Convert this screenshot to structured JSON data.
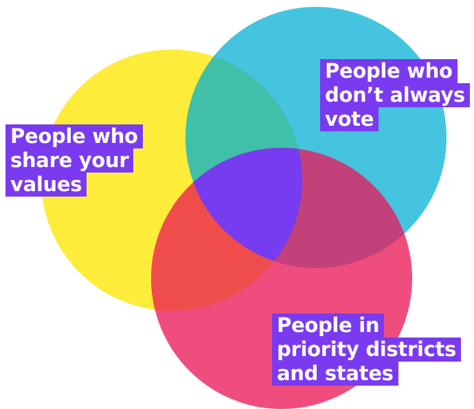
{
  "colors": {
    "yellow_circle": "#fdec3a",
    "blue_circle": "#44c4df",
    "pink_circle": "#ef4d7d",
    "yellow_blue_overlap": "#40bfa9",
    "yellow_pink_overlap": "#ef4c4c",
    "blue_pink_overlap": "#c2417a",
    "center_overlap": "#773bf0",
    "label_background": "#7a3af0",
    "label_text": "#ffffff"
  },
  "labels": {
    "shared_values": [
      "People who",
      "share your",
      "values"
    ],
    "non_voters": [
      "People who",
      "don’t always",
      "vote"
    ],
    "priority_areas": [
      "People in",
      "priority districts",
      "and states"
    ]
  }
}
